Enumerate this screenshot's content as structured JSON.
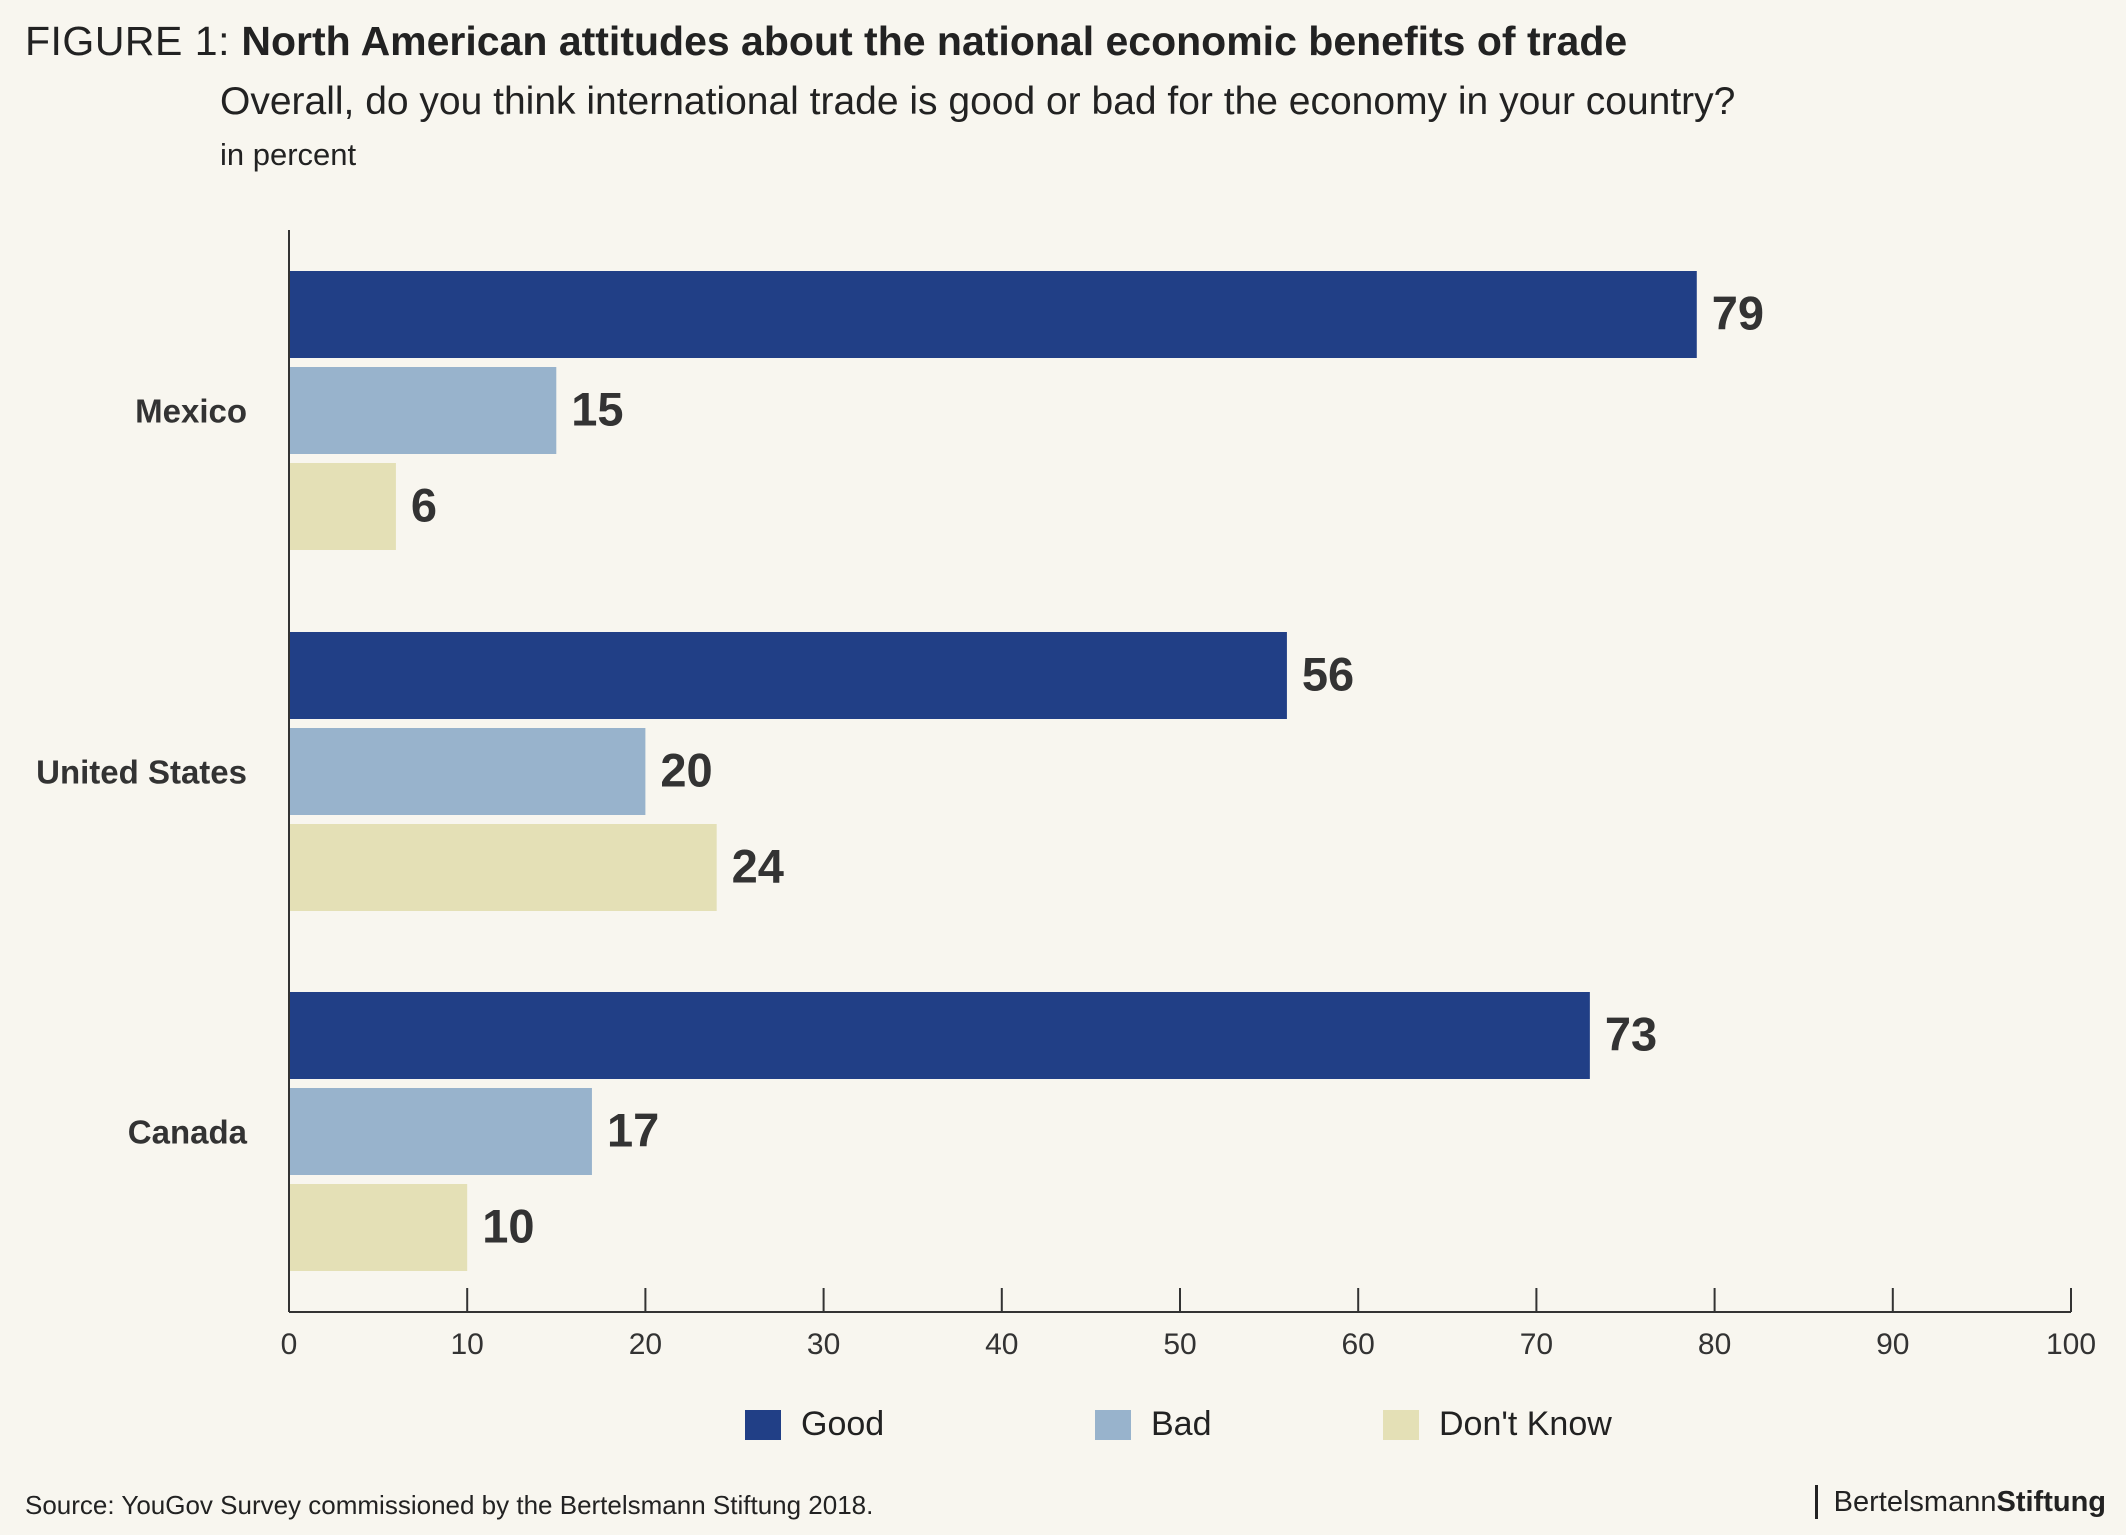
{
  "header": {
    "figure_label": "FIGURE 1:",
    "title": "North American attitudes about the national economic benefits of trade",
    "subtitle": "Overall, do you think international trade is good or bad for the economy in your country?",
    "unit": "in percent"
  },
  "chart_data": {
    "type": "bar",
    "orientation": "horizontal",
    "categories": [
      "Mexico",
      "United States",
      "Canada"
    ],
    "series": [
      {
        "name": "Good",
        "values": [
          79,
          56,
          73
        ],
        "color": "#213f86"
      },
      {
        "name": "Bad",
        "values": [
          15,
          20,
          17
        ],
        "color": "#98b3cc"
      },
      {
        "name": "Don't Know",
        "values": [
          6,
          24,
          10
        ],
        "color": "#e4e0b6"
      }
    ],
    "xlim": [
      0,
      100
    ],
    "xticks": [
      0,
      10,
      20,
      30,
      40,
      50,
      60,
      70,
      80,
      90,
      100
    ],
    "grid": false,
    "legend_position": "bottom"
  },
  "footer": {
    "source": "Source: YouGov Survey commissioned by the Bertelsmann Stiftung 2018.",
    "brand_regular": "Bertelsmann",
    "brand_bold": "Stiftung"
  }
}
